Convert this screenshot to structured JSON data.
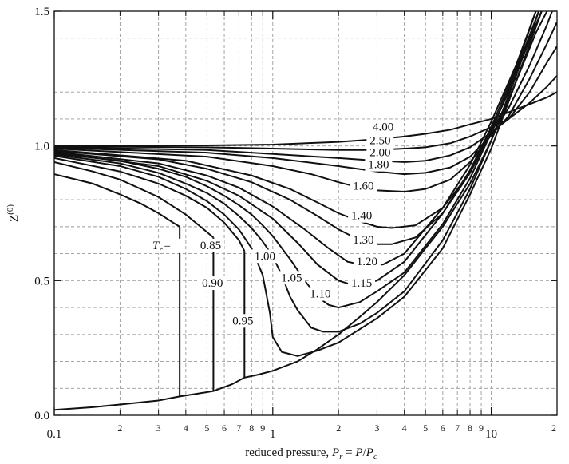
{
  "chart_data": {
    "type": "line",
    "xlabel_prefix": "reduced pressure, ",
    "xlabel_math": [
      "P",
      "r",
      " = ",
      "P",
      "/",
      "P",
      "c"
    ],
    "ylabel_base": "Z",
    "ylabel_sup": "(0)",
    "xscale": "log",
    "xlim": [
      0.1,
      20
    ],
    "ylim": [
      0,
      1.5
    ],
    "grid": true,
    "x_major_ticks": [
      {
        "value": 0.1,
        "label": "0.1"
      },
      {
        "value": 1,
        "label": "1"
      },
      {
        "value": 10,
        "label": "10"
      }
    ],
    "x_minor_ticks": [
      {
        "value": 0.2,
        "label": "2"
      },
      {
        "value": 0.3,
        "label": "3"
      },
      {
        "value": 0.4,
        "label": "4"
      },
      {
        "value": 0.5,
        "label": "5"
      },
      {
        "value": 0.6,
        "label": "6"
      },
      {
        "value": 0.7,
        "label": "7"
      },
      {
        "value": 0.8,
        "label": "8"
      },
      {
        "value": 0.9,
        "label": "9"
      },
      {
        "value": 2,
        "label": "2"
      },
      {
        "value": 3,
        "label": "3"
      },
      {
        "value": 4,
        "label": "4"
      },
      {
        "value": 5,
        "label": "5"
      },
      {
        "value": 6,
        "label": "6"
      },
      {
        "value": 7,
        "label": "7"
      },
      {
        "value": 8,
        "label": "8"
      },
      {
        "value": 9,
        "label": "9"
      },
      {
        "value": 20,
        "label": "2"
      }
    ],
    "y_ticks": [
      {
        "value": 0.0,
        "label": "0.0"
      },
      {
        "value": 0.5,
        "label": "0.5"
      },
      {
        "value": 1.0,
        "label": "1.0"
      },
      {
        "value": 1.5,
        "label": "1.5"
      }
    ],
    "y_grid": [
      0.1,
      0.2,
      0.3,
      0.4,
      0.5,
      0.6,
      0.7,
      0.8,
      0.9,
      1.0,
      1.1,
      1.2,
      1.3,
      1.4
    ],
    "tr_prefix": "T",
    "tr_sub": "r",
    "tr_eq": "=",
    "series": [
      {
        "name": "0.85",
        "points": [
          [
            0.1,
            0.895
          ],
          [
            0.15,
            0.86
          ],
          [
            0.2,
            0.82
          ],
          [
            0.25,
            0.785
          ],
          [
            0.3,
            0.75
          ],
          [
            0.35,
            0.715
          ],
          [
            0.375,
            0.7
          ]
        ],
        "vapor_end": 0.7,
        "liquid_end": 0.07,
        "psat": 0.375
      },
      {
        "name": "0.90",
        "points": [
          [
            0.1,
            0.94
          ],
          [
            0.15,
            0.905
          ],
          [
            0.2,
            0.875
          ],
          [
            0.3,
            0.81
          ],
          [
            0.4,
            0.745
          ],
          [
            0.5,
            0.68
          ],
          [
            0.535,
            0.66
          ]
        ],
        "vapor_end": 0.66,
        "liquid_end": 0.09,
        "psat": 0.535
      },
      {
        "name": "0.95",
        "points": [
          [
            0.1,
            0.955
          ],
          [
            0.2,
            0.905
          ],
          [
            0.3,
            0.86
          ],
          [
            0.4,
            0.815
          ],
          [
            0.5,
            0.77
          ],
          [
            0.6,
            0.715
          ],
          [
            0.7,
            0.65
          ],
          [
            0.742,
            0.61
          ]
        ],
        "vapor_end": 0.61,
        "liquid_end": 0.14,
        "psat": 0.742
      },
      {
        "name": "1.00",
        "points": [
          [
            0.1,
            0.963
          ],
          [
            0.2,
            0.925
          ],
          [
            0.3,
            0.885
          ],
          [
            0.4,
            0.84
          ],
          [
            0.5,
            0.795
          ],
          [
            0.6,
            0.745
          ],
          [
            0.7,
            0.69
          ],
          [
            0.8,
            0.62
          ],
          [
            0.9,
            0.52
          ],
          [
            0.97,
            0.38
          ],
          [
            1.0,
            0.29
          ],
          [
            1.1,
            0.235
          ],
          [
            1.3,
            0.22
          ],
          [
            1.6,
            0.24
          ],
          [
            2.0,
            0.27
          ],
          [
            3.0,
            0.36
          ],
          [
            4.0,
            0.44
          ],
          [
            6.0,
            0.62
          ],
          [
            8.0,
            0.82
          ],
          [
            10.0,
            0.99
          ],
          [
            13.0,
            1.24
          ],
          [
            17.0,
            1.5
          ]
        ]
      },
      {
        "name": "1.05",
        "points": [
          [
            0.1,
            0.968
          ],
          [
            0.2,
            0.935
          ],
          [
            0.3,
            0.9
          ],
          [
            0.4,
            0.86
          ],
          [
            0.5,
            0.825
          ],
          [
            0.6,
            0.785
          ],
          [
            0.7,
            0.74
          ],
          [
            0.8,
            0.695
          ],
          [
            0.9,
            0.645
          ],
          [
            1.0,
            0.59
          ],
          [
            1.1,
            0.52
          ],
          [
            1.2,
            0.44
          ],
          [
            1.3,
            0.39
          ],
          [
            1.5,
            0.325
          ],
          [
            1.7,
            0.31
          ],
          [
            2.0,
            0.31
          ],
          [
            2.5,
            0.34
          ],
          [
            3.0,
            0.38
          ],
          [
            4.0,
            0.46
          ],
          [
            6.0,
            0.65
          ],
          [
            8.0,
            0.84
          ],
          [
            10.0,
            1.02
          ],
          [
            13.0,
            1.26
          ],
          [
            16.5,
            1.5
          ]
        ]
      },
      {
        "name": "1.10",
        "points": [
          [
            0.1,
            0.972
          ],
          [
            0.2,
            0.945
          ],
          [
            0.3,
            0.915
          ],
          [
            0.4,
            0.885
          ],
          [
            0.5,
            0.85
          ],
          [
            0.6,
            0.815
          ],
          [
            0.7,
            0.78
          ],
          [
            0.8,
            0.745
          ],
          [
            0.9,
            0.705
          ],
          [
            1.0,
            0.665
          ],
          [
            1.2,
            0.58
          ],
          [
            1.4,
            0.5
          ],
          [
            1.6,
            0.44
          ],
          [
            1.8,
            0.41
          ],
          [
            2.0,
            0.4
          ],
          [
            2.5,
            0.42
          ],
          [
            3.0,
            0.46
          ],
          [
            4.0,
            0.53
          ],
          [
            6.0,
            0.71
          ],
          [
            8.0,
            0.88
          ],
          [
            10.0,
            1.05
          ],
          [
            13.0,
            1.28
          ],
          [
            16.5,
            1.5
          ]
        ]
      },
      {
        "name": "1.15",
        "points": [
          [
            0.1,
            0.975
          ],
          [
            0.3,
            0.925
          ],
          [
            0.5,
            0.87
          ],
          [
            0.7,
            0.815
          ],
          [
            1.0,
            0.73
          ],
          [
            1.3,
            0.64
          ],
          [
            1.6,
            0.56
          ],
          [
            2.0,
            0.5
          ],
          [
            2.4,
            0.48
          ],
          [
            3.0,
            0.5
          ],
          [
            4.0,
            0.57
          ],
          [
            6.0,
            0.75
          ],
          [
            8.0,
            0.91
          ],
          [
            10.0,
            1.07
          ],
          [
            13.0,
            1.29
          ],
          [
            16.0,
            1.5
          ]
        ]
      },
      {
        "name": "1.20",
        "points": [
          [
            0.1,
            0.978
          ],
          [
            0.3,
            0.935
          ],
          [
            0.5,
            0.89
          ],
          [
            0.7,
            0.845
          ],
          [
            1.0,
            0.775
          ],
          [
            1.4,
            0.69
          ],
          [
            1.8,
            0.62
          ],
          [
            2.2,
            0.57
          ],
          [
            2.7,
            0.555
          ],
          [
            3.2,
            0.56
          ],
          [
            4.0,
            0.6
          ],
          [
            6.0,
            0.77
          ],
          [
            8.0,
            0.93
          ],
          [
            10.0,
            1.09
          ],
          [
            13.0,
            1.3
          ],
          [
            16.0,
            1.5
          ]
        ]
      },
      {
        "name": "1.30",
        "points": [
          [
            0.1,
            0.982
          ],
          [
            0.3,
            0.95
          ],
          [
            0.5,
            0.915
          ],
          [
            0.8,
            0.865
          ],
          [
            1.2,
            0.8
          ],
          [
            1.6,
            0.74
          ],
          [
            2.0,
            0.69
          ],
          [
            2.5,
            0.65
          ],
          [
            3.0,
            0.635
          ],
          [
            3.5,
            0.635
          ],
          [
            4.5,
            0.66
          ],
          [
            6.0,
            0.75
          ],
          [
            8.0,
            0.9
          ],
          [
            10.0,
            1.06
          ],
          [
            12.0,
            1.2
          ],
          [
            16.0,
            1.45
          ],
          [
            17.0,
            1.5
          ]
        ]
      },
      {
        "name": "1.40",
        "points": [
          [
            0.1,
            0.985
          ],
          [
            0.4,
            0.945
          ],
          [
            0.8,
            0.89
          ],
          [
            1.2,
            0.84
          ],
          [
            1.6,
            0.79
          ],
          [
            2.0,
            0.75
          ],
          [
            2.5,
            0.72
          ],
          [
            3.0,
            0.7
          ],
          [
            3.5,
            0.695
          ],
          [
            4.5,
            0.705
          ],
          [
            6.0,
            0.77
          ],
          [
            8.0,
            0.9
          ],
          [
            10.0,
            1.05
          ],
          [
            12.0,
            1.17
          ],
          [
            16.0,
            1.42
          ],
          [
            18.0,
            1.5
          ]
        ]
      },
      {
        "name": "1.60",
        "points": [
          [
            0.1,
            0.99
          ],
          [
            0.5,
            0.96
          ],
          [
            1.0,
            0.925
          ],
          [
            1.5,
            0.895
          ],
          [
            2.0,
            0.865
          ],
          [
            2.5,
            0.845
          ],
          [
            3.0,
            0.835
          ],
          [
            4.0,
            0.83
          ],
          [
            5.0,
            0.84
          ],
          [
            6.5,
            0.875
          ],
          [
            8.0,
            0.94
          ],
          [
            10.0,
            1.04
          ],
          [
            12.0,
            1.14
          ],
          [
            15.0,
            1.3
          ],
          [
            18.0,
            1.45
          ],
          [
            19.0,
            1.5
          ]
        ]
      },
      {
        "name": "1.80",
        "points": [
          [
            0.1,
            0.993
          ],
          [
            0.5,
            0.975
          ],
          [
            1.0,
            0.955
          ],
          [
            2.0,
            0.925
          ],
          [
            3.0,
            0.905
          ],
          [
            4.0,
            0.895
          ],
          [
            5.0,
            0.9
          ],
          [
            6.5,
            0.92
          ],
          [
            8.0,
            0.96
          ],
          [
            10.0,
            1.04
          ],
          [
            12.0,
            1.11
          ],
          [
            15.0,
            1.25
          ],
          [
            18.0,
            1.38
          ],
          [
            20.0,
            1.46
          ]
        ]
      },
      {
        "name": "2.00",
        "points": [
          [
            0.1,
            0.995
          ],
          [
            0.5,
            0.985
          ],
          [
            1.0,
            0.97
          ],
          [
            2.0,
            0.955
          ],
          [
            3.0,
            0.945
          ],
          [
            4.0,
            0.94
          ],
          [
            5.0,
            0.945
          ],
          [
            6.5,
            0.965
          ],
          [
            8.0,
            0.995
          ],
          [
            10.0,
            1.05
          ],
          [
            12.0,
            1.1
          ],
          [
            15.0,
            1.2
          ],
          [
            18.0,
            1.31
          ],
          [
            20.0,
            1.37
          ]
        ]
      },
      {
        "name": "2.50",
        "points": [
          [
            0.1,
            0.998
          ],
          [
            0.5,
            0.995
          ],
          [
            1.0,
            0.99
          ],
          [
            2.0,
            0.985
          ],
          [
            3.0,
            0.985
          ],
          [
            4.0,
            0.99
          ],
          [
            5.0,
            0.995
          ],
          [
            6.5,
            1.01
          ],
          [
            8.0,
            1.035
          ],
          [
            10.0,
            1.07
          ],
          [
            12.0,
            1.1
          ],
          [
            15.0,
            1.16
          ],
          [
            18.0,
            1.22
          ],
          [
            20.0,
            1.26
          ]
        ]
      },
      {
        "name": "4.00",
        "points": [
          [
            0.1,
            1.0
          ],
          [
            0.5,
            1.002
          ],
          [
            1.0,
            1.005
          ],
          [
            2.0,
            1.015
          ],
          [
            3.0,
            1.025
          ],
          [
            4.0,
            1.035
          ],
          [
            5.0,
            1.045
          ],
          [
            6.5,
            1.06
          ],
          [
            8.0,
            1.08
          ],
          [
            10.0,
            1.1
          ],
          [
            12.0,
            1.125
          ],
          [
            15.0,
            1.155
          ],
          [
            18.0,
            1.18
          ],
          [
            20.0,
            1.2
          ]
        ]
      }
    ],
    "liquid_line": [
      [
        0.1,
        0.02
      ],
      [
        0.15,
        0.03
      ],
      [
        0.2,
        0.04
      ],
      [
        0.3,
        0.055
      ],
      [
        0.375,
        0.07
      ],
      [
        0.45,
        0.08
      ],
      [
        0.535,
        0.09
      ],
      [
        0.65,
        0.115
      ],
      [
        0.742,
        0.14
      ],
      [
        0.85,
        0.15
      ],
      [
        1.0,
        0.165
      ],
      [
        1.3,
        0.2
      ],
      [
        1.6,
        0.245
      ],
      [
        2.0,
        0.3
      ],
      [
        2.5,
        0.365
      ],
      [
        3.0,
        0.42
      ],
      [
        4.0,
        0.52
      ],
      [
        5.0,
        0.62
      ],
      [
        6.0,
        0.7
      ],
      [
        8.0,
        0.86
      ],
      [
        10.0,
        1.02
      ],
      [
        13.0,
        1.24
      ],
      [
        17.0,
        1.5
      ]
    ],
    "curve_labels": [
      {
        "text": "0.85",
        "x": 0.52,
        "y": 0.62
      },
      {
        "text": "0.90",
        "x": 0.53,
        "y": 0.48
      },
      {
        "text": "0.95",
        "x": 0.73,
        "y": 0.34
      },
      {
        "text": "1.00",
        "x": 0.92,
        "y": 0.58
      },
      {
        "text": "1.05",
        "x": 1.22,
        "y": 0.5
      },
      {
        "text": "1.10",
        "x": 1.65,
        "y": 0.44
      },
      {
        "text": "1.15",
        "x": 2.55,
        "y": 0.48
      },
      {
        "text": "1.20",
        "x": 2.7,
        "y": 0.56
      },
      {
        "text": "1.30",
        "x": 2.6,
        "y": 0.64
      },
      {
        "text": "1.40",
        "x": 2.55,
        "y": 0.73
      },
      {
        "text": "1.60",
        "x": 2.6,
        "y": 0.84
      },
      {
        "text": "1.80",
        "x": 3.05,
        "y": 0.92
      },
      {
        "text": "2.00",
        "x": 3.1,
        "y": 0.965
      },
      {
        "text": "2.50",
        "x": 3.1,
        "y": 1.01
      },
      {
        "text": "4.00",
        "x": 3.2,
        "y": 1.06
      }
    ],
    "tr_label_anchor": {
      "x": 0.35,
      "y": 0.62
    }
  }
}
